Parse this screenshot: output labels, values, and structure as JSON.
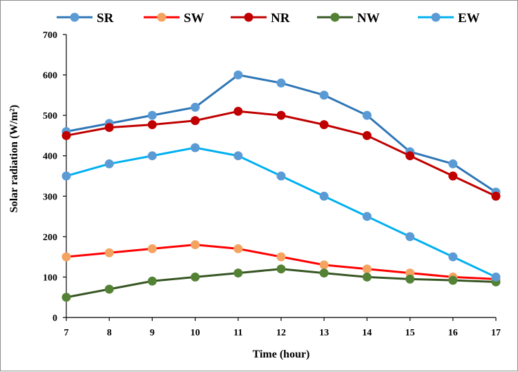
{
  "chart_data": {
    "type": "line",
    "title": "",
    "xlabel": "Time (hour)",
    "ylabel": "Solar radiation (W/m²)",
    "x": [
      7,
      8,
      9,
      10,
      11,
      12,
      13,
      14,
      15,
      16,
      17
    ],
    "xlim": [
      7,
      17
    ],
    "ylim": [
      0,
      700
    ],
    "y_ticks": [
      0,
      100,
      200,
      300,
      400,
      500,
      600,
      700
    ],
    "grid": false,
    "legend_position": "top",
    "series": [
      {
        "name": "SR",
        "color": "#2e75b6",
        "marker_color": "#5b9bd5",
        "values": [
          460,
          480,
          500,
          520,
          600,
          580,
          550,
          500,
          410,
          380,
          310
        ]
      },
      {
        "name": "SW",
        "color": "#ff0000",
        "marker_color": "#f4a460",
        "values": [
          150,
          160,
          170,
          180,
          170,
          150,
          130,
          120,
          110,
          100,
          95
        ]
      },
      {
        "name": "NR",
        "color": "#c00000",
        "marker_color": "#c00000",
        "values": [
          450,
          470,
          477,
          487,
          510,
          500,
          477,
          450,
          400,
          350,
          300
        ]
      },
      {
        "name": "NW",
        "color": "#375623",
        "marker_color": "#548235",
        "values": [
          50,
          70,
          90,
          100,
          110,
          120,
          110,
          100,
          95,
          92,
          88
        ]
      },
      {
        "name": "EW",
        "color": "#00b0f0",
        "marker_color": "#5b9bd5",
        "values": [
          350,
          380,
          400,
          420,
          400,
          350,
          300,
          250,
          200,
          150,
          100
        ]
      }
    ]
  }
}
